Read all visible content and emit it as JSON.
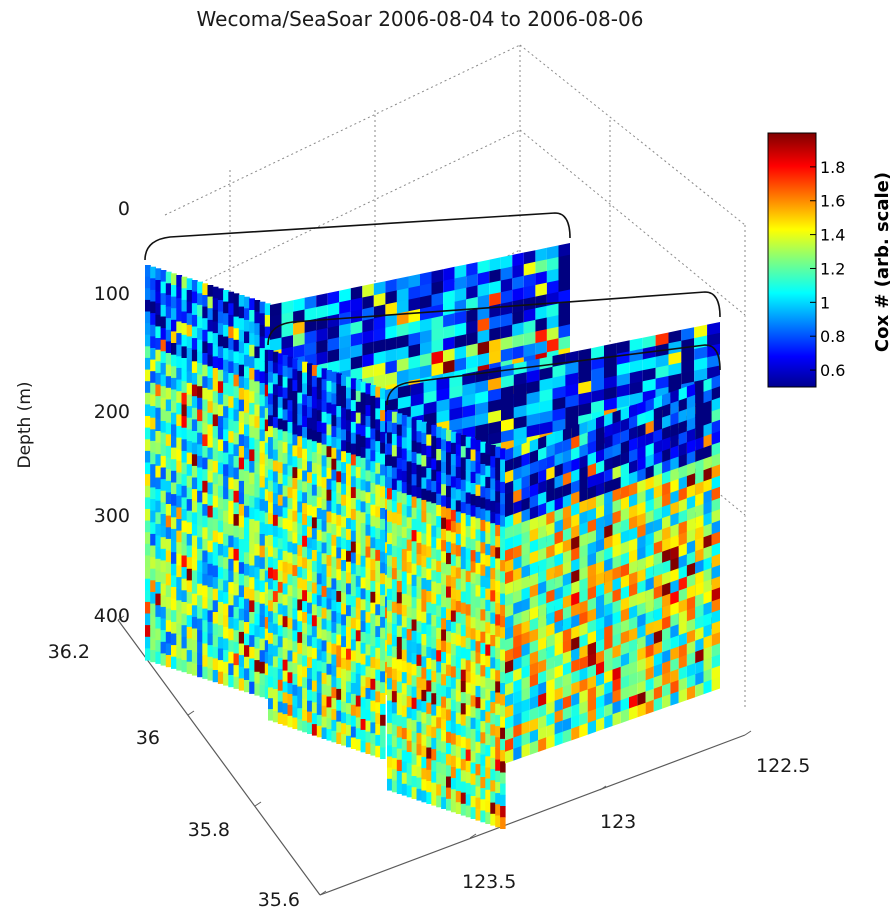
{
  "chart_data": {
    "type": "heatmap",
    "title": "Wecoma/SeaSoar  2006-08-04  to  2006-08-06",
    "zlabel": "Depth (m)",
    "z_ticks": [
      "0",
      "100",
      "200",
      "300",
      "400"
    ],
    "lat_ticks": [
      "36.2",
      "36",
      "35.8",
      "35.6"
    ],
    "lon_ticks": [
      "122.5",
      "123",
      "123.5"
    ],
    "colorbar": {
      "label": "Cox # (arb. scale)",
      "ticks": [
        "0.6",
        "0.8",
        "1",
        "1.2",
        "1.4",
        "1.6",
        "1.8"
      ],
      "range": [
        0.5,
        2.0
      ],
      "colormap": "jet"
    },
    "sections": [
      {
        "index": 1,
        "surface_mean": 0.75,
        "deep_mean": 1.15
      },
      {
        "index": 2,
        "surface_mean": 0.75,
        "deep_mean": 1.2
      },
      {
        "index": 3,
        "surface_mean": 0.7,
        "deep_mean": 1.3
      }
    ]
  }
}
